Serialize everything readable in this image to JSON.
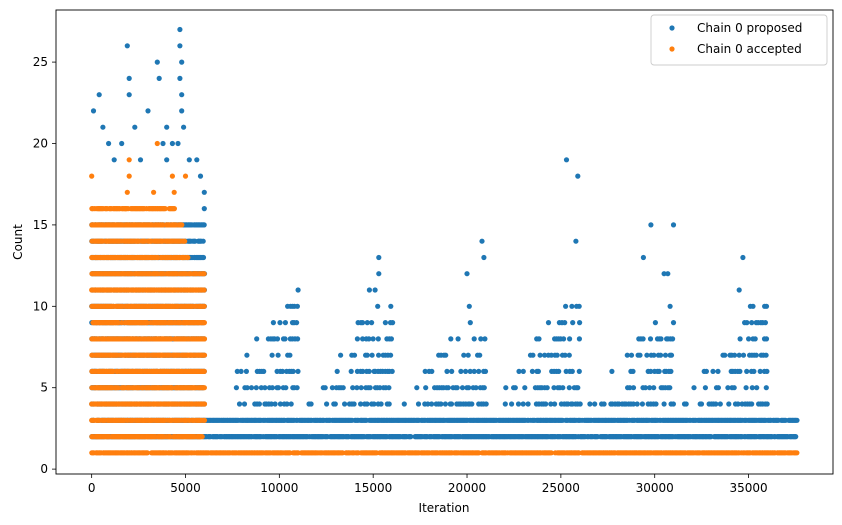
{
  "chart_data": {
    "type": "scatter",
    "title": "",
    "xlabel": "Iteration",
    "ylabel": "Count",
    "xlim": [
      -1900,
      39500
    ],
    "ylim": [
      -0.3,
      28.2
    ],
    "x_ticks": [
      0,
      5000,
      10000,
      15000,
      20000,
      25000,
      30000,
      35000
    ],
    "y_ticks": [
      0,
      5,
      10,
      15,
      20,
      25
    ],
    "grid": false,
    "legend_position": "top-right",
    "series": [
      {
        "name": "Chain 0 proposed",
        "color": "#1f77b4",
        "bands": [
          {
            "y": 2,
            "x_start": 0,
            "x_end": 37600
          },
          {
            "y": 3,
            "x_start": 0,
            "x_end": 37600
          },
          {
            "y": 4,
            "x_start": 0,
            "x_end": 6000
          },
          {
            "y": 5,
            "x_start": 0,
            "x_end": 6000
          },
          {
            "y": 6,
            "x_start": 0,
            "x_end": 6000
          },
          {
            "y": 7,
            "x_start": 0,
            "x_end": 6000
          },
          {
            "y": 8,
            "x_start": 0,
            "x_end": 6000
          },
          {
            "y": 9,
            "x_start": 0,
            "x_end": 6000
          },
          {
            "y": 10,
            "x_start": 0,
            "x_end": 6000
          },
          {
            "y": 11,
            "x_start": 0,
            "x_end": 6000
          },
          {
            "y": 12,
            "x_start": 0,
            "x_end": 6000
          },
          {
            "y": 13,
            "x_start": 0,
            "x_end": 6000
          },
          {
            "y": 14,
            "x_start": 0,
            "x_end": 6000
          },
          {
            "y": 15,
            "x_start": 0,
            "x_end": 6000
          }
        ],
        "cycle_peaks": [
          11000,
          16000,
          21000,
          26000,
          31000,
          36000
        ],
        "points": [
          [
            100,
            22
          ],
          [
            400,
            23
          ],
          [
            600,
            21
          ],
          [
            900,
            20
          ],
          [
            1200,
            19
          ],
          [
            1600,
            20
          ],
          [
            1900,
            26
          ],
          [
            2000,
            24
          ],
          [
            2000,
            23
          ],
          [
            2300,
            21
          ],
          [
            2600,
            19
          ],
          [
            3000,
            22
          ],
          [
            3500,
            25
          ],
          [
            3600,
            24
          ],
          [
            3800,
            20
          ],
          [
            4000,
            21
          ],
          [
            4300,
            20
          ],
          [
            4700,
            27
          ],
          [
            4700,
            26
          ],
          [
            4800,
            25
          ],
          [
            4700,
            24
          ],
          [
            4800,
            23
          ],
          [
            4800,
            22
          ],
          [
            4900,
            21
          ],
          [
            4600,
            20
          ],
          [
            4000,
            19
          ],
          [
            5200,
            19
          ],
          [
            5600,
            19
          ],
          [
            5800,
            18
          ],
          [
            6000,
            17
          ],
          [
            6000,
            16
          ],
          [
            11000,
            11
          ],
          [
            10300,
            8
          ],
          [
            10700,
            9
          ],
          [
            15300,
            13
          ],
          [
            15300,
            12
          ],
          [
            14800,
            11
          ],
          [
            15100,
            11
          ],
          [
            20000,
            12
          ],
          [
            20800,
            14
          ],
          [
            20900,
            13
          ],
          [
            25300,
            19
          ],
          [
            25900,
            18
          ],
          [
            25800,
            14
          ],
          [
            29800,
            15
          ],
          [
            31000,
            15
          ],
          [
            29400,
            13
          ],
          [
            30700,
            12
          ],
          [
            30500,
            12
          ],
          [
            34700,
            13
          ],
          [
            34500,
            11
          ]
        ]
      },
      {
        "name": "Chain 0 accepted",
        "color": "#ff7f0e",
        "bands": [
          {
            "y": 1,
            "x_start": 0,
            "x_end": 37600
          },
          {
            "y": 2,
            "x_start": 0,
            "x_end": 5900
          },
          {
            "y": 3,
            "x_start": 0,
            "x_end": 6000
          },
          {
            "y": 4,
            "x_start": 0,
            "x_end": 6000
          },
          {
            "y": 5,
            "x_start": 0,
            "x_end": 6000
          },
          {
            "y": 6,
            "x_start": 0,
            "x_end": 6000
          },
          {
            "y": 7,
            "x_start": 0,
            "x_end": 6000
          },
          {
            "y": 8,
            "x_start": 0,
            "x_end": 6000
          },
          {
            "y": 9,
            "x_start": 0,
            "x_end": 6000
          },
          {
            "y": 10,
            "x_start": 0,
            "x_end": 6000
          },
          {
            "y": 11,
            "x_start": 0,
            "x_end": 6000
          },
          {
            "y": 12,
            "x_start": 0,
            "x_end": 6000
          },
          {
            "y": 13,
            "x_start": 0,
            "x_end": 5200
          },
          {
            "y": 14,
            "x_start": 0,
            "x_end": 5000
          },
          {
            "y": 15,
            "x_start": 0,
            "x_end": 4800
          },
          {
            "y": 16,
            "x_start": 0,
            "x_end": 4500
          }
        ],
        "points": [
          [
            0,
            18
          ],
          [
            2000,
            19
          ],
          [
            2000,
            18
          ],
          [
            1900,
            17
          ],
          [
            3500,
            20
          ],
          [
            4300,
            18
          ],
          [
            5000,
            18
          ],
          [
            1800,
            16
          ],
          [
            3300,
            17
          ],
          [
            4400,
            17
          ]
        ]
      }
    ]
  }
}
